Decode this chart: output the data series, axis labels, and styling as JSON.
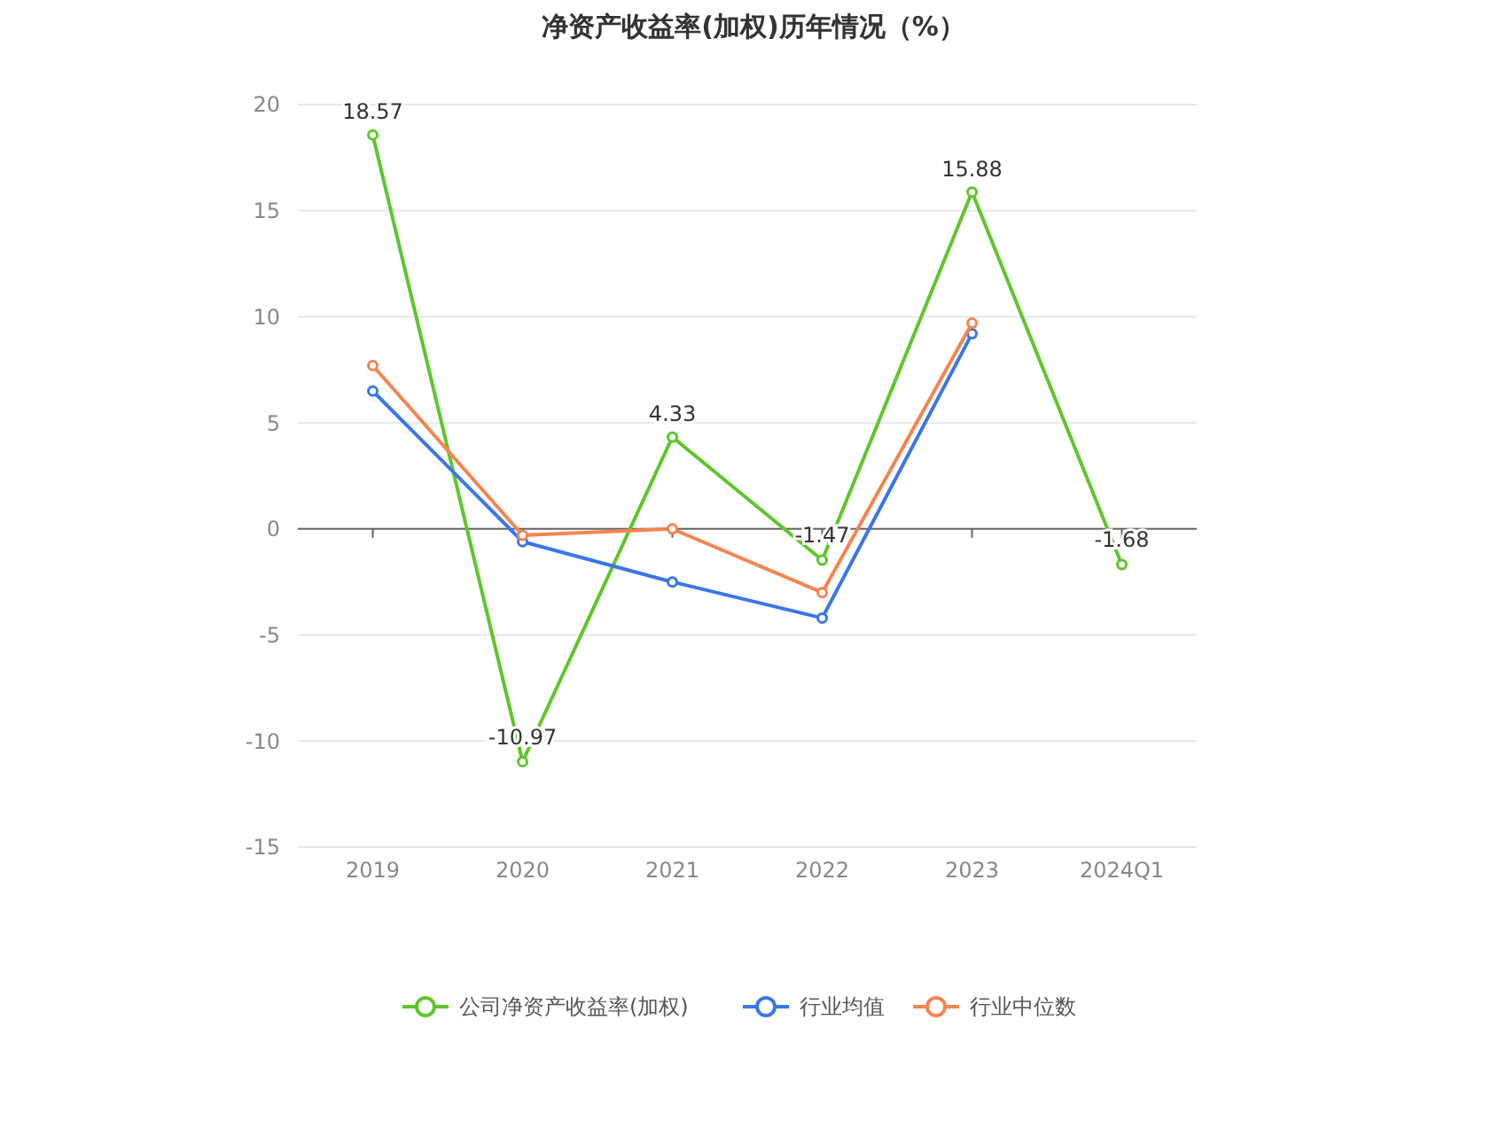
{
  "chart_data": {
    "type": "line",
    "title": "净资产收益率(加权)历年情况（%）",
    "categories": [
      "2019",
      "2020",
      "2021",
      "2022",
      "2023",
      "2024Q1"
    ],
    "series": [
      {
        "name": "公司净资产收益率(加权)",
        "color": "#5ec62b",
        "values": [
          18.57,
          -10.97,
          4.33,
          -1.47,
          15.88,
          -1.68
        ],
        "value_labels": [
          "18.57",
          "-10.97",
          "4.33",
          "-1.47",
          "15.88",
          "-1.68"
        ]
      },
      {
        "name": "行业均值",
        "color": "#3a76e8",
        "values": [
          6.5,
          -0.6,
          -2.5,
          -4.2,
          9.2,
          null
        ]
      },
      {
        "name": "行业中位数",
        "color": "#f5844f",
        "values": [
          7.7,
          -0.3,
          0.0,
          -3.0,
          9.7,
          null
        ]
      }
    ],
    "ylim": [
      -15,
      20
    ],
    "yticks": [
      -15,
      -10,
      -5,
      0,
      5,
      10,
      15,
      20
    ],
    "grid": "y",
    "legend": "bottom",
    "marker": "circle"
  }
}
